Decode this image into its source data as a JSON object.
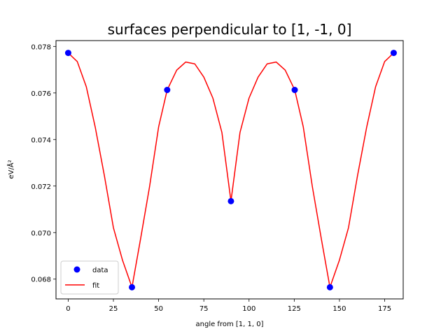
{
  "chart_data": {
    "type": "scatter",
    "title": "surfaces perpendicular to [1, -1, 0]",
    "xlabel": "angle from [1, 1, 0]",
    "ylabel": "eV/Å²",
    "xlim": [
      -6.75,
      185.25
    ],
    "ylim": [
      0.06715,
      0.07825
    ],
    "xticks": [
      0,
      25,
      50,
      75,
      100,
      125,
      150,
      175
    ],
    "yticks": [
      0.068,
      0.07,
      0.072,
      0.074,
      0.076,
      0.078
    ],
    "ytick_labels": [
      "0.068",
      "0.070",
      "0.072",
      "0.074",
      "0.076",
      "0.078"
    ],
    "grid": false,
    "legend_position": "lower left",
    "series": [
      {
        "name": "data",
        "style": "markers",
        "color": "#0000ff",
        "x": [
          0,
          35.26,
          54.74,
          90,
          125.26,
          144.74,
          180
        ],
        "y": [
          0.07772,
          0.06765,
          0.07613,
          0.07135,
          0.07613,
          0.06765,
          0.07772
        ]
      },
      {
        "name": "fit",
        "style": "line",
        "color": "#ff0000",
        "x": [
          0,
          5,
          10,
          15,
          20,
          25,
          30,
          35.26,
          40,
          45,
          50,
          54.74,
          60,
          65,
          70,
          75,
          80,
          85,
          90,
          95,
          100,
          105,
          110,
          115,
          120,
          125.26,
          130,
          135,
          140,
          144.74,
          150,
          155,
          160,
          165,
          170,
          175,
          180
        ],
        "y": [
          0.07772,
          0.07735,
          0.07627,
          0.07451,
          0.07245,
          0.07021,
          0.06882,
          0.06765,
          0.06972,
          0.07198,
          0.07454,
          0.07613,
          0.07698,
          0.07733,
          0.07725,
          0.07668,
          0.07578,
          0.0743,
          0.07135,
          0.0743,
          0.07578,
          0.07668,
          0.07725,
          0.07733,
          0.07698,
          0.07613,
          0.07454,
          0.07198,
          0.06972,
          0.06765,
          0.06882,
          0.07021,
          0.07245,
          0.07451,
          0.07627,
          0.07735,
          0.07772
        ]
      }
    ]
  }
}
